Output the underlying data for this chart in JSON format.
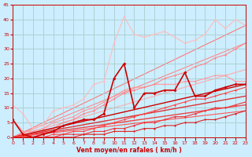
{
  "xlabel": "Vent moyen/en rafales ( km/h )",
  "xlim": [
    0,
    23
  ],
  "ylim": [
    0,
    45
  ],
  "xticks": [
    0,
    1,
    2,
    3,
    4,
    5,
    6,
    7,
    8,
    9,
    10,
    11,
    12,
    13,
    14,
    15,
    16,
    17,
    18,
    19,
    20,
    21,
    22,
    23
  ],
  "yticks": [
    0,
    5,
    10,
    15,
    20,
    25,
    30,
    35,
    40,
    45
  ],
  "bg_color": "#cceeff",
  "grid_color": "#aacccc",
  "series": [
    {
      "x": [
        0,
        1,
        2,
        3,
        4,
        5,
        6,
        7,
        8,
        9,
        10,
        11,
        12,
        13,
        14,
        15,
        16,
        17,
        18,
        19,
        20,
        21,
        22,
        23
      ],
      "y": [
        11,
        8,
        3,
        4,
        9,
        10,
        11,
        13,
        18,
        19,
        32,
        41,
        35,
        34,
        35,
        36,
        34,
        32,
        33,
        35,
        40,
        37,
        40,
        38
      ],
      "color": "#ffbbbb",
      "lw": 0.8,
      "marker": "D",
      "ms": 1.5,
      "zorder": 2
    },
    {
      "x": [
        0,
        1,
        2,
        3,
        4,
        5,
        6,
        7,
        8,
        9,
        10,
        11,
        12,
        13,
        14,
        15,
        16,
        17,
        18,
        19,
        20,
        21,
        22,
        23
      ],
      "y": [
        6,
        2,
        2,
        3,
        5,
        6,
        7,
        9,
        10,
        12,
        14,
        16,
        17,
        17,
        18,
        18,
        18,
        19,
        19,
        20,
        21,
        21,
        19,
        19
      ],
      "color": "#ff9999",
      "lw": 0.8,
      "marker": "D",
      "ms": 1.5,
      "zorder": 2
    },
    {
      "x": [
        0,
        1,
        2,
        3,
        4,
        5,
        6,
        7,
        8,
        9,
        10,
        11,
        12,
        13,
        14,
        15,
        16,
        17,
        18,
        19,
        20,
        21,
        22,
        23
      ],
      "y": [
        0,
        0,
        1,
        2,
        3,
        5,
        6,
        8,
        9,
        11,
        13,
        15,
        16,
        17,
        18,
        20,
        21,
        22,
        24,
        25,
        27,
        28,
        30,
        32
      ],
      "color": "#ff8888",
      "lw": 0.8,
      "marker": "D",
      "ms": 1.5,
      "zorder": 2
    },
    {
      "x": [
        0,
        23
      ],
      "y": [
        0,
        23
      ],
      "color": "#ffaaaa",
      "lw": 0.8,
      "marker": null,
      "ms": 0,
      "zorder": 1
    },
    {
      "x": [
        0,
        23
      ],
      "y": [
        0,
        32
      ],
      "color": "#ff8888",
      "lw": 0.8,
      "marker": null,
      "ms": 0,
      "zorder": 1
    },
    {
      "x": [
        0,
        23
      ],
      "y": [
        0,
        38
      ],
      "color": "#ff7777",
      "lw": 0.8,
      "marker": null,
      "ms": 0,
      "zorder": 1
    },
    {
      "x": [
        0,
        1,
        2,
        3,
        4,
        5,
        6,
        7,
        8,
        9,
        10,
        11,
        12,
        13,
        14,
        15,
        16,
        17,
        18,
        19,
        20,
        21,
        22,
        23
      ],
      "y": [
        6,
        1,
        0,
        1,
        2,
        4,
        5,
        6,
        6,
        8,
        20,
        25,
        10,
        15,
        15,
        16,
        16,
        22,
        14,
        14,
        16,
        17,
        18,
        18
      ],
      "color": "#cc0000",
      "lw": 1.2,
      "marker": "D",
      "ms": 2.0,
      "zorder": 5
    },
    {
      "x": [
        0,
        23
      ],
      "y": [
        0,
        18
      ],
      "color": "#cc0000",
      "lw": 1.0,
      "marker": null,
      "ms": 0,
      "zorder": 3
    },
    {
      "x": [
        0,
        23
      ],
      "y": [
        0,
        14
      ],
      "color": "#dd3333",
      "lw": 1.0,
      "marker": null,
      "ms": 0,
      "zorder": 3
    },
    {
      "x": [
        0,
        23
      ],
      "y": [
        0,
        11
      ],
      "color": "#ee4444",
      "lw": 1.0,
      "marker": null,
      "ms": 0,
      "zorder": 3
    },
    {
      "x": [
        0,
        23
      ],
      "y": [
        0,
        9
      ],
      "color": "#ff5555",
      "lw": 0.8,
      "marker": null,
      "ms": 0,
      "zorder": 3
    },
    {
      "x": [
        0,
        1,
        2,
        3,
        4,
        5,
        6,
        7,
        8,
        9,
        10,
        11,
        12,
        13,
        14,
        15,
        16,
        17,
        18,
        19,
        20,
        21,
        22,
        23
      ],
      "y": [
        0,
        0,
        0,
        0,
        1,
        1,
        2,
        2,
        3,
        4,
        5,
        6,
        7,
        8,
        9,
        10,
        11,
        12,
        13,
        13,
        14,
        15,
        16,
        17
      ],
      "color": "#ff4444",
      "lw": 0.8,
      "marker": "D",
      "ms": 1.5,
      "zorder": 4
    },
    {
      "x": [
        0,
        1,
        2,
        3,
        4,
        5,
        6,
        7,
        8,
        9,
        10,
        11,
        12,
        13,
        14,
        15,
        16,
        17,
        18,
        19,
        20,
        21,
        22,
        23
      ],
      "y": [
        0,
        0,
        0,
        0,
        0,
        1,
        1,
        1,
        2,
        2,
        3,
        3,
        4,
        5,
        5,
        6,
        7,
        7,
        8,
        9,
        10,
        10,
        11,
        12
      ],
      "color": "#ee3333",
      "lw": 0.8,
      "marker": "D",
      "ms": 1.5,
      "zorder": 4
    },
    {
      "x": [
        0,
        1,
        2,
        3,
        4,
        5,
        6,
        7,
        8,
        9,
        10,
        11,
        12,
        13,
        14,
        15,
        16,
        17,
        18,
        19,
        20,
        21,
        22,
        23
      ],
      "y": [
        0,
        0,
        0,
        0,
        0,
        0,
        0,
        1,
        1,
        1,
        2,
        2,
        2,
        3,
        3,
        4,
        4,
        5,
        5,
        6,
        6,
        7,
        8,
        9
      ],
      "color": "#dd2222",
      "lw": 0.8,
      "marker": "D",
      "ms": 1.5,
      "zorder": 4
    }
  ],
  "tick_fontsize": 4.5,
  "xlabel_fontsize": 5.5,
  "xlabel_fontweight": "bold"
}
